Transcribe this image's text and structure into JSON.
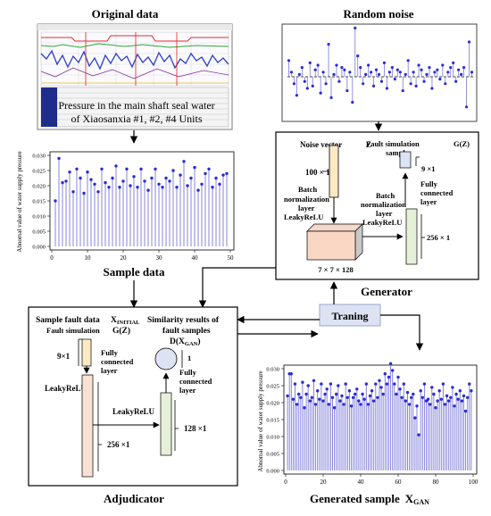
{
  "colors": {
    "stem": "#7b78d8",
    "dot": "#2b2bd6",
    "box_border": "#000000",
    "tan_fill": "#fde9c4",
    "green_fill": "#e6f0d8",
    "pink_fill": "#f9e1d4",
    "training_fill": "#dde3f2",
    "training_border": "#98a8cc"
  },
  "original_data": {
    "title": "Original data",
    "caption_line1": "Pressure in the main shaft seal water",
    "caption_line2": "of Xiaosanxia #1, #2, #4 Units"
  },
  "random_noise": {
    "title": "Random noise"
  },
  "sample_data": {
    "title": "Sample data",
    "ylabel": "Abnomal value of water supply pressure"
  },
  "generator": {
    "title": "Generator",
    "noise_vector": "Noise vector",
    "z": "Z",
    "dim_100": "100 × 1",
    "batch_norm1": "Batch",
    "batch_norm2": "normalization",
    "batch_norm3": "layer",
    "leaky": "LeakyReLU",
    "cube_dim": "7 × 7 × 128",
    "fault_sim1": "Fault simulation",
    "fault_sim2": "sample",
    "gz": "G(Z)",
    "dim_9": "9 ×1",
    "fc1": "Fully",
    "fc2": "connected",
    "fc3": "layer",
    "bn2_1": "Batch",
    "bn2_2": "normalization",
    "bn2_3": "layer",
    "leaky2": "LeakyReLU",
    "dim_256": "256 × 1"
  },
  "training": {
    "label": "Traning"
  },
  "adjudicator": {
    "title": "Adjudicator",
    "sample_fault": "Sample fault data",
    "x_initial": "X",
    "x_initial_sub": "INITIAL",
    "fault_sim": "Fault simulation",
    "gz": "G(Z)",
    "sim_results1": "Similarity results of",
    "sim_results2": "fault samples",
    "d_x": "D(X",
    "d_x_sub": "GAN",
    "d_x_close": ")",
    "one": "1",
    "dim_9": "9×1",
    "fc1": "Fully",
    "fc2": "connected",
    "fc3": "layer",
    "fc4": "Fully",
    "fc5": "connected",
    "fc6": "layer",
    "leaky1": "LeakyReLU",
    "leaky2": "LeakyReLU",
    "dim_256": "256 ×1",
    "dim_128": "128 ×1"
  },
  "generated": {
    "title": "Generated sample",
    "x": "X",
    "x_sub": "GAN",
    "ylabel": "Abnomal value of water supply pressure"
  },
  "chart_data": [
    {
      "type": "scatter",
      "title": "Sample data",
      "ylabel": "Abnomal value of water supply pressure",
      "xlim": [
        0,
        50
      ],
      "ylim": [
        0,
        0.03
      ],
      "yticks": [
        "0.000",
        "0.005",
        "0.010",
        "0.015",
        "0.020",
        "0.025",
        "0.030"
      ],
      "ytick_values": [
        0,
        0.005,
        0.01,
        0.015,
        0.02,
        0.025,
        0.03
      ],
      "xticks": [
        "0",
        "10",
        "20",
        "30",
        "40",
        "50"
      ],
      "xtick_values": [
        0,
        10,
        20,
        30,
        40,
        50
      ],
      "x": [
        1,
        2,
        3,
        4,
        5,
        6,
        7,
        8,
        9,
        10,
        11,
        12,
        13,
        14,
        15,
        16,
        17,
        18,
        19,
        20,
        21,
        22,
        23,
        24,
        25,
        26,
        27,
        28,
        29,
        30,
        31,
        32,
        33,
        34,
        35,
        36,
        37,
        38,
        39,
        40,
        41,
        42,
        43,
        44,
        45,
        46,
        47,
        48,
        49
      ],
      "y": [
        0.015,
        0.029,
        0.021,
        0.0215,
        0.0245,
        0.018,
        0.0255,
        0.0225,
        0.0175,
        0.0245,
        0.022,
        0.0205,
        0.018,
        0.0255,
        0.021,
        0.0195,
        0.0225,
        0.0265,
        0.0195,
        0.0215,
        0.0255,
        0.02,
        0.023,
        0.0195,
        0.0255,
        0.0215,
        0.0185,
        0.0225,
        0.0255,
        0.0205,
        0.0195,
        0.0225,
        0.0215,
        0.025,
        0.0195,
        0.0235,
        0.028,
        0.02,
        0.0225,
        0.026,
        0.0185,
        0.0205,
        0.024,
        0.0255,
        0.0195,
        0.0225,
        0.0205,
        0.0235,
        0.024
      ]
    },
    {
      "type": "scatter",
      "title": "Generated sample",
      "ylabel": "Abnomal value of water supply pressure",
      "xlim": [
        0,
        100
      ],
      "ylim": [
        0,
        0.03
      ],
      "yticks": [
        "0.000",
        "0.005",
        "0.010",
        "0.015",
        "0.020",
        "0.025",
        "0.030"
      ],
      "ytick_values": [
        0,
        0.005,
        0.01,
        0.015,
        0.02,
        0.025,
        0.03
      ],
      "xticks": [
        "0",
        "20",
        "40",
        "60",
        "80",
        "100"
      ],
      "xtick_values": [
        0,
        20,
        40,
        60,
        80,
        100
      ],
      "x": [
        1,
        2,
        3,
        4,
        5,
        6,
        7,
        8,
        9,
        10,
        11,
        12,
        13,
        14,
        15,
        16,
        17,
        18,
        19,
        20,
        21,
        22,
        23,
        24,
        25,
        26,
        27,
        28,
        29,
        30,
        31,
        32,
        33,
        34,
        35,
        36,
        37,
        38,
        39,
        40,
        41,
        42,
        43,
        44,
        45,
        46,
        47,
        48,
        49,
        50,
        51,
        52,
        53,
        54,
        55,
        56,
        57,
        58,
        59,
        60,
        61,
        62,
        63,
        64,
        65,
        66,
        67,
        68,
        69,
        70,
        71,
        72,
        73,
        74,
        75,
        76,
        77,
        78,
        79,
        80,
        81,
        82,
        83,
        84,
        85,
        86,
        87,
        88,
        89,
        90,
        91,
        92,
        93,
        94,
        95,
        96,
        97,
        98,
        99
      ],
      "y": [
        0.022,
        0.0285,
        0.0285,
        0.021,
        0.0255,
        0.0195,
        0.0225,
        0.0215,
        0.026,
        0.0185,
        0.0225,
        0.025,
        0.0205,
        0.0215,
        0.0265,
        0.0195,
        0.0235,
        0.021,
        0.0255,
        0.0205,
        0.0225,
        0.024,
        0.0195,
        0.0255,
        0.0215,
        0.0185,
        0.0225,
        0.025,
        0.0205,
        0.022,
        0.0195,
        0.0255,
        0.0215,
        0.0235,
        0.019,
        0.0215,
        0.0225,
        0.024,
        0.0205,
        0.0195,
        0.0225,
        0.021,
        0.0255,
        0.0195,
        0.022,
        0.0235,
        0.0205,
        0.0255,
        0.0215,
        0.0265,
        0.0245,
        0.0225,
        0.0285,
        0.0255,
        0.0275,
        0.0315,
        0.0295,
        0.0255,
        0.0225,
        0.0275,
        0.024,
        0.0215,
        0.0255,
        0.0205,
        0.023,
        0.0195,
        0.0215,
        0.0225,
        0.0155,
        0.019,
        0.0105,
        0.0235,
        0.0215,
        0.0255,
        0.0205,
        0.021,
        0.0195,
        0.0245,
        0.0225,
        0.0185,
        0.0205,
        0.0235,
        0.021,
        0.0255,
        0.0195,
        0.022,
        0.0205,
        0.0215,
        0.0245,
        0.019,
        0.0225,
        0.021,
        0.0235,
        0.0205,
        0.022,
        0.0175,
        0.0215,
        0.0255,
        0.0235
      ]
    },
    {
      "type": "scatter",
      "title": "Random noise",
      "x": [
        1,
        2,
        3,
        4,
        5,
        6,
        7,
        8,
        9,
        10,
        11,
        12,
        13,
        14,
        15,
        16,
        17,
        18,
        19,
        20,
        21,
        22,
        23,
        24,
        25,
        26,
        27,
        28,
        29,
        30,
        31,
        32,
        33,
        34,
        35,
        36,
        37,
        38,
        39,
        40,
        41,
        42,
        43,
        44,
        45,
        46,
        47,
        48,
        49,
        50,
        51,
        52,
        53,
        54,
        55,
        56,
        57,
        58,
        59,
        60,
        61,
        62,
        63,
        64,
        65,
        66,
        67,
        68,
        69,
        70
      ],
      "y": [
        0.7,
        0.2,
        -0.3,
        -0.8,
        0.1,
        0.4,
        -0.2,
        -0.5,
        0.6,
        -0.4,
        0.3,
        0.5,
        -0.7,
        0.2,
        -0.3,
        1.4,
        -0.9,
        0.1,
        0.5,
        -0.2,
        0.4,
        0.3,
        -0.6,
        0.2,
        -1.1,
        2.1,
        0.9,
        0.4,
        -0.3,
        0.1,
        0.5,
        0.2,
        -0.4,
        0.3,
        0.1,
        -0.2,
        0.6,
        -0.5,
        0.2,
        0.4,
        -0.1,
        0.3,
        0.2,
        -0.6,
        0.1,
        0.7,
        -0.3,
        0.2,
        -0.4,
        0.5,
        0.3,
        -0.2,
        0.1,
        0.4,
        -0.5,
        0.2,
        0.3,
        -0.1,
        0.5,
        -0.3,
        0.2,
        0.4,
        0.6,
        -0.2,
        0.3,
        0.1,
        0.4,
        -1.3,
        1.5,
        0.2
      ]
    }
  ]
}
